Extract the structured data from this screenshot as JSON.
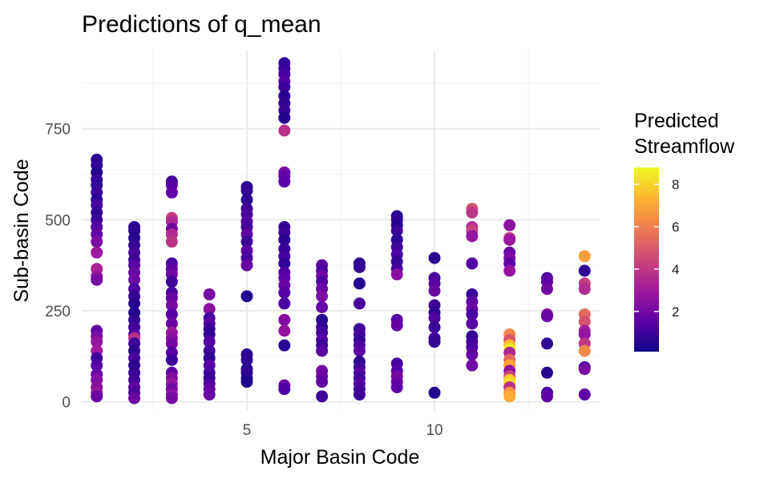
{
  "chart_data": {
    "type": "scatter",
    "title": "Predictions of q_mean",
    "xlabel": "Major Basin Code",
    "ylabel": "Sub-basin Code",
    "xlim": [
      0.6,
      14.4
    ],
    "ylim": [
      -25,
      965
    ],
    "x_ticks": [
      5,
      10
    ],
    "y_ticks": [
      0,
      250,
      500,
      750
    ],
    "grid": true,
    "legend": {
      "title": "Predicted Streamflow",
      "title_lines": [
        "Predicted",
        "Streamflow"
      ],
      "position": "right",
      "range": [
        0.1,
        8.8
      ],
      "ticks": [
        2,
        4,
        6,
        8
      ],
      "colors": [
        "#0d0887",
        "#5c01a6",
        "#9c179e",
        "#cc4778",
        "#ed7953",
        "#fdb42f",
        "#f0f921"
      ]
    },
    "points": [
      {
        "x": 1,
        "y": 665,
        "v": 0.6
      },
      {
        "x": 1,
        "y": 650,
        "v": 0.8
      },
      {
        "x": 1,
        "y": 630,
        "v": 0.5
      },
      {
        "x": 1,
        "y": 610,
        "v": 0.9
      },
      {
        "x": 1,
        "y": 595,
        "v": 0.7
      },
      {
        "x": 1,
        "y": 575,
        "v": 1.0
      },
      {
        "x": 1,
        "y": 555,
        "v": 0.6
      },
      {
        "x": 1,
        "y": 540,
        "v": 1.2
      },
      {
        "x": 1,
        "y": 520,
        "v": 0.8
      },
      {
        "x": 1,
        "y": 500,
        "v": 1.0
      },
      {
        "x": 1,
        "y": 480,
        "v": 1.4
      },
      {
        "x": 1,
        "y": 460,
        "v": 1.7
      },
      {
        "x": 1,
        "y": 440,
        "v": 2.3
      },
      {
        "x": 1,
        "y": 410,
        "v": 3.0
      },
      {
        "x": 1,
        "y": 365,
        "v": 3.4
      },
      {
        "x": 1,
        "y": 345,
        "v": 2.8
      },
      {
        "x": 1,
        "y": 335,
        "v": 2.2
      },
      {
        "x": 1,
        "y": 195,
        "v": 1.6
      },
      {
        "x": 1,
        "y": 180,
        "v": 2.2
      },
      {
        "x": 1,
        "y": 165,
        "v": 2.8
      },
      {
        "x": 1,
        "y": 140,
        "v": 3.1
      },
      {
        "x": 1,
        "y": 120,
        "v": 1.0
      },
      {
        "x": 1,
        "y": 100,
        "v": 1.4
      },
      {
        "x": 1,
        "y": 75,
        "v": 1.8
      },
      {
        "x": 1,
        "y": 60,
        "v": 2.4
      },
      {
        "x": 1,
        "y": 40,
        "v": 2.6
      },
      {
        "x": 1,
        "y": 25,
        "v": 2.9
      },
      {
        "x": 1,
        "y": 15,
        "v": 1.9
      },
      {
        "x": 2,
        "y": 480,
        "v": 0.6
      },
      {
        "x": 2,
        "y": 470,
        "v": 0.7
      },
      {
        "x": 2,
        "y": 450,
        "v": 0.5
      },
      {
        "x": 2,
        "y": 430,
        "v": 0.8
      },
      {
        "x": 2,
        "y": 410,
        "v": 1.2
      },
      {
        "x": 2,
        "y": 390,
        "v": 1.0
      },
      {
        "x": 2,
        "y": 375,
        "v": 1.5
      },
      {
        "x": 2,
        "y": 355,
        "v": 1.8
      },
      {
        "x": 2,
        "y": 335,
        "v": 2.0
      },
      {
        "x": 2,
        "y": 310,
        "v": 1.3
      },
      {
        "x": 2,
        "y": 290,
        "v": 0.9
      },
      {
        "x": 2,
        "y": 270,
        "v": 0.6
      },
      {
        "x": 2,
        "y": 245,
        "v": 0.5
      },
      {
        "x": 2,
        "y": 225,
        "v": 0.8
      },
      {
        "x": 2,
        "y": 205,
        "v": 1.1
      },
      {
        "x": 2,
        "y": 185,
        "v": 1.4
      },
      {
        "x": 2,
        "y": 175,
        "v": 3.8
      },
      {
        "x": 2,
        "y": 160,
        "v": 1.0
      },
      {
        "x": 2,
        "y": 140,
        "v": 0.7
      },
      {
        "x": 2,
        "y": 120,
        "v": 1.2
      },
      {
        "x": 2,
        "y": 100,
        "v": 0.6
      },
      {
        "x": 2,
        "y": 80,
        "v": 0.9
      },
      {
        "x": 2,
        "y": 60,
        "v": 1.1
      },
      {
        "x": 2,
        "y": 40,
        "v": 1.6
      },
      {
        "x": 2,
        "y": 25,
        "v": 1.3
      },
      {
        "x": 2,
        "y": 10,
        "v": 1.9
      },
      {
        "x": 3,
        "y": 605,
        "v": 1.1
      },
      {
        "x": 3,
        "y": 595,
        "v": 1.4
      },
      {
        "x": 3,
        "y": 575,
        "v": 1.7
      },
      {
        "x": 3,
        "y": 505,
        "v": 4.2
      },
      {
        "x": 3,
        "y": 495,
        "v": 3.5
      },
      {
        "x": 3,
        "y": 475,
        "v": 2.1
      },
      {
        "x": 3,
        "y": 460,
        "v": 3.6
      },
      {
        "x": 3,
        "y": 440,
        "v": 3.9
      },
      {
        "x": 3,
        "y": 380,
        "v": 1.2
      },
      {
        "x": 3,
        "y": 365,
        "v": 1.6
      },
      {
        "x": 3,
        "y": 350,
        "v": 2.0
      },
      {
        "x": 3,
        "y": 330,
        "v": 1.0
      },
      {
        "x": 3,
        "y": 300,
        "v": 1.3
      },
      {
        "x": 3,
        "y": 285,
        "v": 1.8
      },
      {
        "x": 3,
        "y": 265,
        "v": 2.2
      },
      {
        "x": 3,
        "y": 240,
        "v": 1.5
      },
      {
        "x": 3,
        "y": 215,
        "v": 1.9
      },
      {
        "x": 3,
        "y": 190,
        "v": 3.0
      },
      {
        "x": 3,
        "y": 175,
        "v": 2.6
      },
      {
        "x": 3,
        "y": 160,
        "v": 2.1
      },
      {
        "x": 3,
        "y": 135,
        "v": 1.4
      },
      {
        "x": 3,
        "y": 115,
        "v": 1.0
      },
      {
        "x": 3,
        "y": 80,
        "v": 1.7
      },
      {
        "x": 3,
        "y": 65,
        "v": 2.4
      },
      {
        "x": 3,
        "y": 50,
        "v": 2.8
      },
      {
        "x": 3,
        "y": 35,
        "v": 2.0
      },
      {
        "x": 3,
        "y": 20,
        "v": 2.6
      },
      {
        "x": 3,
        "y": 10,
        "v": 2.2
      },
      {
        "x": 4,
        "y": 295,
        "v": 2.2
      },
      {
        "x": 4,
        "y": 255,
        "v": 2.6
      },
      {
        "x": 4,
        "y": 230,
        "v": 1.2
      },
      {
        "x": 4,
        "y": 215,
        "v": 1.6
      },
      {
        "x": 4,
        "y": 200,
        "v": 1.0
      },
      {
        "x": 4,
        "y": 185,
        "v": 0.8
      },
      {
        "x": 4,
        "y": 165,
        "v": 1.4
      },
      {
        "x": 4,
        "y": 140,
        "v": 1.1
      },
      {
        "x": 4,
        "y": 120,
        "v": 0.7
      },
      {
        "x": 4,
        "y": 100,
        "v": 1.5
      },
      {
        "x": 4,
        "y": 80,
        "v": 1.2
      },
      {
        "x": 4,
        "y": 65,
        "v": 0.9
      },
      {
        "x": 4,
        "y": 50,
        "v": 1.3
      },
      {
        "x": 4,
        "y": 35,
        "v": 1.7
      },
      {
        "x": 4,
        "y": 20,
        "v": 1.9
      },
      {
        "x": 5,
        "y": 590,
        "v": 0.6
      },
      {
        "x": 5,
        "y": 580,
        "v": 0.8
      },
      {
        "x": 5,
        "y": 555,
        "v": 0.7
      },
      {
        "x": 5,
        "y": 530,
        "v": 1.0
      },
      {
        "x": 5,
        "y": 515,
        "v": 1.2
      },
      {
        "x": 5,
        "y": 495,
        "v": 1.4
      },
      {
        "x": 5,
        "y": 480,
        "v": 1.1
      },
      {
        "x": 5,
        "y": 460,
        "v": 1.6
      },
      {
        "x": 5,
        "y": 440,
        "v": 1.0
      },
      {
        "x": 5,
        "y": 415,
        "v": 1.5
      },
      {
        "x": 5,
        "y": 395,
        "v": 1.2
      },
      {
        "x": 5,
        "y": 375,
        "v": 1.8
      },
      {
        "x": 5,
        "y": 290,
        "v": 0.5
      },
      {
        "x": 5,
        "y": 130,
        "v": 0.6
      },
      {
        "x": 5,
        "y": 115,
        "v": 0.7
      },
      {
        "x": 5,
        "y": 90,
        "v": 0.5
      },
      {
        "x": 5,
        "y": 80,
        "v": 0.8
      },
      {
        "x": 5,
        "y": 65,
        "v": 0.6
      },
      {
        "x": 5,
        "y": 55,
        "v": 0.4
      },
      {
        "x": 6,
        "y": 930,
        "v": 0.8
      },
      {
        "x": 6,
        "y": 915,
        "v": 0.9
      },
      {
        "x": 6,
        "y": 900,
        "v": 1.2
      },
      {
        "x": 6,
        "y": 880,
        "v": 1.4
      },
      {
        "x": 6,
        "y": 865,
        "v": 1.0
      },
      {
        "x": 6,
        "y": 840,
        "v": 0.6
      },
      {
        "x": 6,
        "y": 820,
        "v": 0.7
      },
      {
        "x": 6,
        "y": 800,
        "v": 0.9
      },
      {
        "x": 6,
        "y": 780,
        "v": 0.5
      },
      {
        "x": 6,
        "y": 745,
        "v": 3.8
      },
      {
        "x": 6,
        "y": 630,
        "v": 2.2
      },
      {
        "x": 6,
        "y": 620,
        "v": 1.8
      },
      {
        "x": 6,
        "y": 605,
        "v": 1.5
      },
      {
        "x": 6,
        "y": 480,
        "v": 0.8
      },
      {
        "x": 6,
        "y": 465,
        "v": 1.0
      },
      {
        "x": 6,
        "y": 445,
        "v": 0.6
      },
      {
        "x": 6,
        "y": 420,
        "v": 0.9
      },
      {
        "x": 6,
        "y": 400,
        "v": 1.1
      },
      {
        "x": 6,
        "y": 380,
        "v": 0.7
      },
      {
        "x": 6,
        "y": 355,
        "v": 1.3
      },
      {
        "x": 6,
        "y": 340,
        "v": 1.6
      },
      {
        "x": 6,
        "y": 320,
        "v": 1.9
      },
      {
        "x": 6,
        "y": 300,
        "v": 1.4
      },
      {
        "x": 6,
        "y": 270,
        "v": 1.2
      },
      {
        "x": 6,
        "y": 225,
        "v": 2.4
      },
      {
        "x": 6,
        "y": 195,
        "v": 2.8
      },
      {
        "x": 6,
        "y": 155,
        "v": 0.6
      },
      {
        "x": 6,
        "y": 45,
        "v": 2.0
      },
      {
        "x": 6,
        "y": 35,
        "v": 1.3
      },
      {
        "x": 7,
        "y": 375,
        "v": 1.6
      },
      {
        "x": 7,
        "y": 360,
        "v": 1.2
      },
      {
        "x": 7,
        "y": 345,
        "v": 2.0
      },
      {
        "x": 7,
        "y": 330,
        "v": 1.4
      },
      {
        "x": 7,
        "y": 310,
        "v": 1.9
      },
      {
        "x": 7,
        "y": 290,
        "v": 2.3
      },
      {
        "x": 7,
        "y": 260,
        "v": 1.8
      },
      {
        "x": 7,
        "y": 225,
        "v": 0.6
      },
      {
        "x": 7,
        "y": 205,
        "v": 0.8
      },
      {
        "x": 7,
        "y": 190,
        "v": 1.1
      },
      {
        "x": 7,
        "y": 170,
        "v": 1.4
      },
      {
        "x": 7,
        "y": 155,
        "v": 1.0
      },
      {
        "x": 7,
        "y": 140,
        "v": 1.5
      },
      {
        "x": 7,
        "y": 85,
        "v": 2.1
      },
      {
        "x": 7,
        "y": 70,
        "v": 1.9
      },
      {
        "x": 7,
        "y": 55,
        "v": 1.7
      },
      {
        "x": 7,
        "y": 15,
        "v": 1.0
      },
      {
        "x": 8,
        "y": 380,
        "v": 0.6
      },
      {
        "x": 8,
        "y": 370,
        "v": 0.8
      },
      {
        "x": 8,
        "y": 325,
        "v": 0.5
      },
      {
        "x": 8,
        "y": 270,
        "v": 1.1
      },
      {
        "x": 8,
        "y": 200,
        "v": 1.0
      },
      {
        "x": 8,
        "y": 185,
        "v": 1.3
      },
      {
        "x": 8,
        "y": 170,
        "v": 0.9
      },
      {
        "x": 8,
        "y": 155,
        "v": 1.2
      },
      {
        "x": 8,
        "y": 140,
        "v": 1.6
      },
      {
        "x": 8,
        "y": 110,
        "v": 0.7
      },
      {
        "x": 8,
        "y": 95,
        "v": 1.0
      },
      {
        "x": 8,
        "y": 80,
        "v": 1.4
      },
      {
        "x": 8,
        "y": 65,
        "v": 1.1
      },
      {
        "x": 8,
        "y": 50,
        "v": 1.5
      },
      {
        "x": 8,
        "y": 35,
        "v": 1.2
      },
      {
        "x": 8,
        "y": 20,
        "v": 1.0
      },
      {
        "x": 9,
        "y": 510,
        "v": 0.6
      },
      {
        "x": 9,
        "y": 500,
        "v": 0.8
      },
      {
        "x": 9,
        "y": 485,
        "v": 0.5
      },
      {
        "x": 9,
        "y": 470,
        "v": 0.9
      },
      {
        "x": 9,
        "y": 445,
        "v": 0.7
      },
      {
        "x": 9,
        "y": 425,
        "v": 1.0
      },
      {
        "x": 9,
        "y": 405,
        "v": 1.3
      },
      {
        "x": 9,
        "y": 385,
        "v": 0.8
      },
      {
        "x": 9,
        "y": 365,
        "v": 1.1
      },
      {
        "x": 9,
        "y": 350,
        "v": 2.6
      },
      {
        "x": 9,
        "y": 225,
        "v": 1.4
      },
      {
        "x": 9,
        "y": 210,
        "v": 1.7
      },
      {
        "x": 9,
        "y": 105,
        "v": 1.2
      },
      {
        "x": 9,
        "y": 85,
        "v": 1.5
      },
      {
        "x": 9,
        "y": 70,
        "v": 2.2
      },
      {
        "x": 9,
        "y": 55,
        "v": 1.9
      },
      {
        "x": 9,
        "y": 40,
        "v": 1.6
      },
      {
        "x": 10,
        "y": 395,
        "v": 0.6
      },
      {
        "x": 10,
        "y": 340,
        "v": 1.2
      },
      {
        "x": 10,
        "y": 325,
        "v": 1.5
      },
      {
        "x": 10,
        "y": 305,
        "v": 1.8
      },
      {
        "x": 10,
        "y": 265,
        "v": 1.0
      },
      {
        "x": 10,
        "y": 245,
        "v": 0.7
      },
      {
        "x": 10,
        "y": 230,
        "v": 1.3
      },
      {
        "x": 10,
        "y": 205,
        "v": 0.9
      },
      {
        "x": 10,
        "y": 175,
        "v": 1.1
      },
      {
        "x": 10,
        "y": 165,
        "v": 0.8
      },
      {
        "x": 10,
        "y": 25,
        "v": 0.5
      },
      {
        "x": 11,
        "y": 530,
        "v": 4.8
      },
      {
        "x": 11,
        "y": 520,
        "v": 4.0
      },
      {
        "x": 11,
        "y": 480,
        "v": 3.7
      },
      {
        "x": 11,
        "y": 470,
        "v": 4.3
      },
      {
        "x": 11,
        "y": 455,
        "v": 2.8
      },
      {
        "x": 11,
        "y": 380,
        "v": 1.4
      },
      {
        "x": 11,
        "y": 295,
        "v": 1.0
      },
      {
        "x": 11,
        "y": 275,
        "v": 1.6
      },
      {
        "x": 11,
        "y": 255,
        "v": 1.9
      },
      {
        "x": 11,
        "y": 240,
        "v": 1.2
      },
      {
        "x": 11,
        "y": 215,
        "v": 1.5
      },
      {
        "x": 11,
        "y": 180,
        "v": 0.8
      },
      {
        "x": 11,
        "y": 165,
        "v": 1.1
      },
      {
        "x": 11,
        "y": 150,
        "v": 1.3
      },
      {
        "x": 11,
        "y": 130,
        "v": 1.7
      },
      {
        "x": 11,
        "y": 100,
        "v": 2.0
      },
      {
        "x": 12,
        "y": 485,
        "v": 2.6
      },
      {
        "x": 12,
        "y": 450,
        "v": 4.2
      },
      {
        "x": 12,
        "y": 445,
        "v": 3.0
      },
      {
        "x": 12,
        "y": 410,
        "v": 1.9
      },
      {
        "x": 12,
        "y": 395,
        "v": 2.3
      },
      {
        "x": 12,
        "y": 380,
        "v": 1.6
      },
      {
        "x": 12,
        "y": 360,
        "v": 2.9
      },
      {
        "x": 12,
        "y": 185,
        "v": 6.2
      },
      {
        "x": 12,
        "y": 170,
        "v": 5.0
      },
      {
        "x": 12,
        "y": 155,
        "v": 7.5
      },
      {
        "x": 12,
        "y": 145,
        "v": 8.6
      },
      {
        "x": 12,
        "y": 135,
        "v": 3.5
      },
      {
        "x": 12,
        "y": 115,
        "v": 5.5
      },
      {
        "x": 12,
        "y": 100,
        "v": 6.9
      },
      {
        "x": 12,
        "y": 85,
        "v": 2.7
      },
      {
        "x": 12,
        "y": 70,
        "v": 4.4
      },
      {
        "x": 12,
        "y": 60,
        "v": 7.8
      },
      {
        "x": 12,
        "y": 50,
        "v": 8.2
      },
      {
        "x": 12,
        "y": 40,
        "v": 3.9
      },
      {
        "x": 12,
        "y": 25,
        "v": 6.6
      },
      {
        "x": 12,
        "y": 15,
        "v": 7.1
      },
      {
        "x": 13,
        "y": 340,
        "v": 1.4
      },
      {
        "x": 13,
        "y": 330,
        "v": 1.7
      },
      {
        "x": 13,
        "y": 310,
        "v": 2.0
      },
      {
        "x": 13,
        "y": 240,
        "v": 2.4
      },
      {
        "x": 13,
        "y": 235,
        "v": 1.9
      },
      {
        "x": 13,
        "y": 160,
        "v": 0.7
      },
      {
        "x": 13,
        "y": 80,
        "v": 0.6
      },
      {
        "x": 13,
        "y": 25,
        "v": 1.3
      },
      {
        "x": 13,
        "y": 15,
        "v": 1.6
      },
      {
        "x": 14,
        "y": 400,
        "v": 6.8
      },
      {
        "x": 14,
        "y": 360,
        "v": 0.8
      },
      {
        "x": 14,
        "y": 325,
        "v": 4.2
      },
      {
        "x": 14,
        "y": 310,
        "v": 3.6
      },
      {
        "x": 14,
        "y": 240,
        "v": 5.4
      },
      {
        "x": 14,
        "y": 220,
        "v": 4.8
      },
      {
        "x": 14,
        "y": 195,
        "v": 3.2
      },
      {
        "x": 14,
        "y": 185,
        "v": 2.8
      },
      {
        "x": 14,
        "y": 160,
        "v": 3.9
      },
      {
        "x": 14,
        "y": 140,
        "v": 6.3
      },
      {
        "x": 14,
        "y": 95,
        "v": 1.0
      },
      {
        "x": 14,
        "y": 90,
        "v": 2.2
      },
      {
        "x": 14,
        "y": 20,
        "v": 1.6
      }
    ]
  }
}
